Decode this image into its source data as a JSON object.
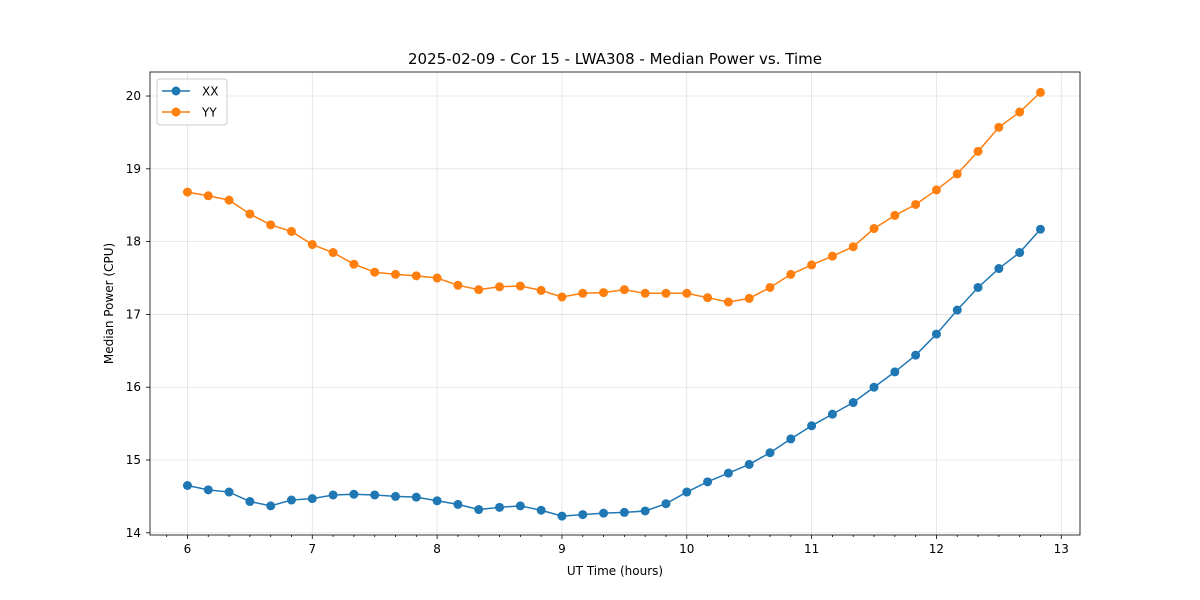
{
  "chart_data": {
    "type": "line",
    "title": "2025-02-09 - Cor 15 - LWA308 - Median Power vs. Time",
    "xlabel": "UT Time (hours)",
    "ylabel": "Median Power (CPU)",
    "xlim": [
      5.7,
      13.15
    ],
    "ylim": [
      13.97,
      20.33
    ],
    "xticks": [
      6,
      7,
      8,
      9,
      10,
      11,
      12,
      13
    ],
    "yticks": [
      14,
      15,
      16,
      17,
      18,
      19,
      20
    ],
    "grid": true,
    "legend_position": "upper-left",
    "x": [
      6.0,
      6.1667,
      6.3333,
      6.5,
      6.6667,
      6.8333,
      7.0,
      7.1667,
      7.3333,
      7.5,
      7.6667,
      7.8333,
      8.0,
      8.1667,
      8.3333,
      8.5,
      8.6667,
      8.8333,
      9.0,
      9.1667,
      9.3333,
      9.5,
      9.6667,
      9.8333,
      10.0,
      10.1667,
      10.3333,
      10.5,
      10.6667,
      10.8333,
      11.0,
      11.1667,
      11.3333,
      11.5,
      11.6667,
      11.8333,
      12.0,
      12.1667,
      12.3333,
      12.5,
      12.6667,
      12.8333
    ],
    "series": [
      {
        "name": "XX",
        "color": "#1f77b4",
        "values": [
          14.65,
          14.59,
          14.56,
          14.43,
          14.37,
          14.45,
          14.47,
          14.52,
          14.53,
          14.52,
          14.5,
          14.49,
          14.44,
          14.39,
          14.32,
          14.35,
          14.37,
          14.31,
          14.23,
          14.25,
          14.27,
          14.28,
          14.3,
          14.4,
          14.56,
          14.7,
          14.82,
          14.94,
          15.1,
          15.29,
          15.47,
          15.63,
          15.79,
          16.0,
          16.21,
          16.44,
          16.73,
          17.06,
          17.37,
          17.63,
          17.85,
          18.17
        ]
      },
      {
        "name": "YY",
        "color": "#ff7f0e",
        "values": [
          18.68,
          18.63,
          18.57,
          18.38,
          18.23,
          18.14,
          17.96,
          17.85,
          17.69,
          17.58,
          17.55,
          17.53,
          17.5,
          17.4,
          17.34,
          17.38,
          17.39,
          17.33,
          17.24,
          17.29,
          17.3,
          17.34,
          17.29,
          17.29,
          17.29,
          17.23,
          17.17,
          17.22,
          17.37,
          17.55,
          17.68,
          17.8,
          17.93,
          18.18,
          18.36,
          18.51,
          18.71,
          18.93,
          19.24,
          19.57,
          19.78,
          20.05
        ]
      }
    ]
  }
}
